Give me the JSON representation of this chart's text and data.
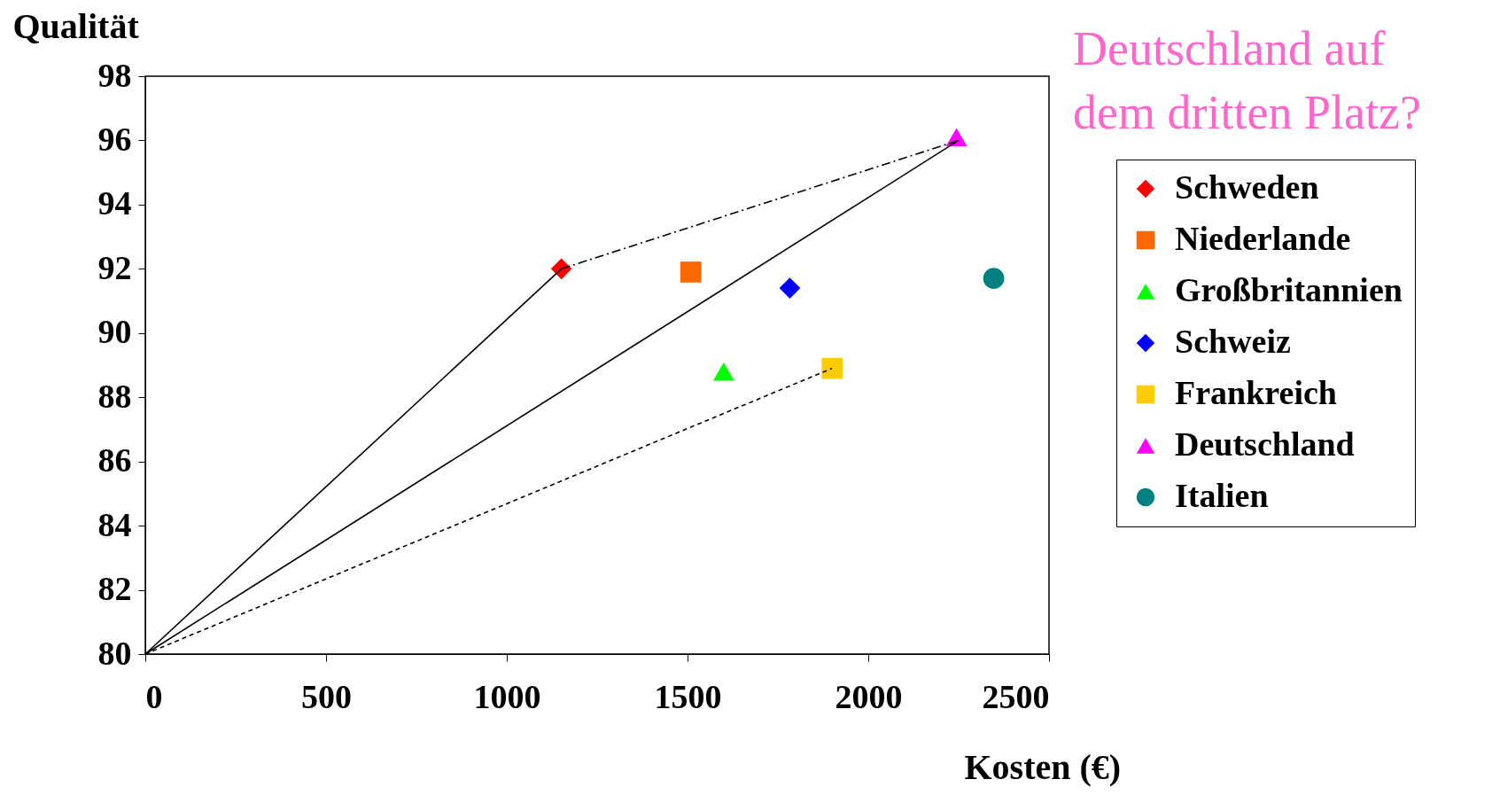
{
  "chart_data": {
    "type": "scatter",
    "xlabel": "Kosten (€)",
    "ylabel": "Qualität",
    "annotations": [
      "Deutschland auf dem dritten Platz?"
    ],
    "xlim": [
      0,
      2500
    ],
    "xticks": [
      0,
      500,
      1000,
      1500,
      2000,
      2500
    ],
    "ylim": [
      80,
      98
    ],
    "yticks": [
      80,
      82,
      84,
      86,
      88,
      90,
      92,
      94,
      96,
      98
    ],
    "grid": false,
    "legend": "right",
    "series": [
      {
        "name": "Schweden",
        "color": "#ff0000",
        "marker": "diamond",
        "x": [
          1151
        ],
        "values": [
          92.0
        ]
      },
      {
        "name": "Niederlande",
        "color": "#ff6600",
        "marker": "square",
        "x": [
          1509
        ],
        "values": [
          91.9
        ]
      },
      {
        "name": "Großbritannien",
        "color": "#00ff00",
        "marker": "triangle",
        "x": [
          1600
        ],
        "values": [
          88.8
        ]
      },
      {
        "name": "Schweiz",
        "color": "#0000ff",
        "marker": "diamond",
        "x": [
          1783
        ],
        "values": [
          91.4
        ]
      },
      {
        "name": "Frankreich",
        "color": "#ffcc00",
        "marker": "square",
        "x": [
          1900
        ],
        "values": [
          88.9
        ]
      },
      {
        "name": "Deutschland",
        "color": "#ff00ff",
        "marker": "triangle",
        "x": [
          2244
        ],
        "values": [
          96.1
        ]
      },
      {
        "name": "Italien",
        "color": "#008080",
        "marker": "circle",
        "x": [
          2347
        ],
        "values": [
          91.7
        ]
      },
      {
        "type": "line",
        "color": "#000000",
        "line_style": "solid",
        "x": [
          0,
          1151
        ],
        "values": [
          80,
          92.0
        ]
      },
      {
        "type": "line",
        "color": "#000000",
        "line_style": "solid",
        "x": [
          0,
          2250
        ],
        "values": [
          80,
          96.0
        ]
      },
      {
        "type": "line",
        "color": "#000000",
        "line_style": "dotted",
        "x": [
          0,
          1900
        ],
        "values": [
          80,
          88.9
        ]
      },
      {
        "type": "line",
        "color": "#000000",
        "line_style": "dashed",
        "x": [
          1151,
          2250
        ],
        "values": [
          92.0,
          96.0
        ]
      }
    ]
  }
}
